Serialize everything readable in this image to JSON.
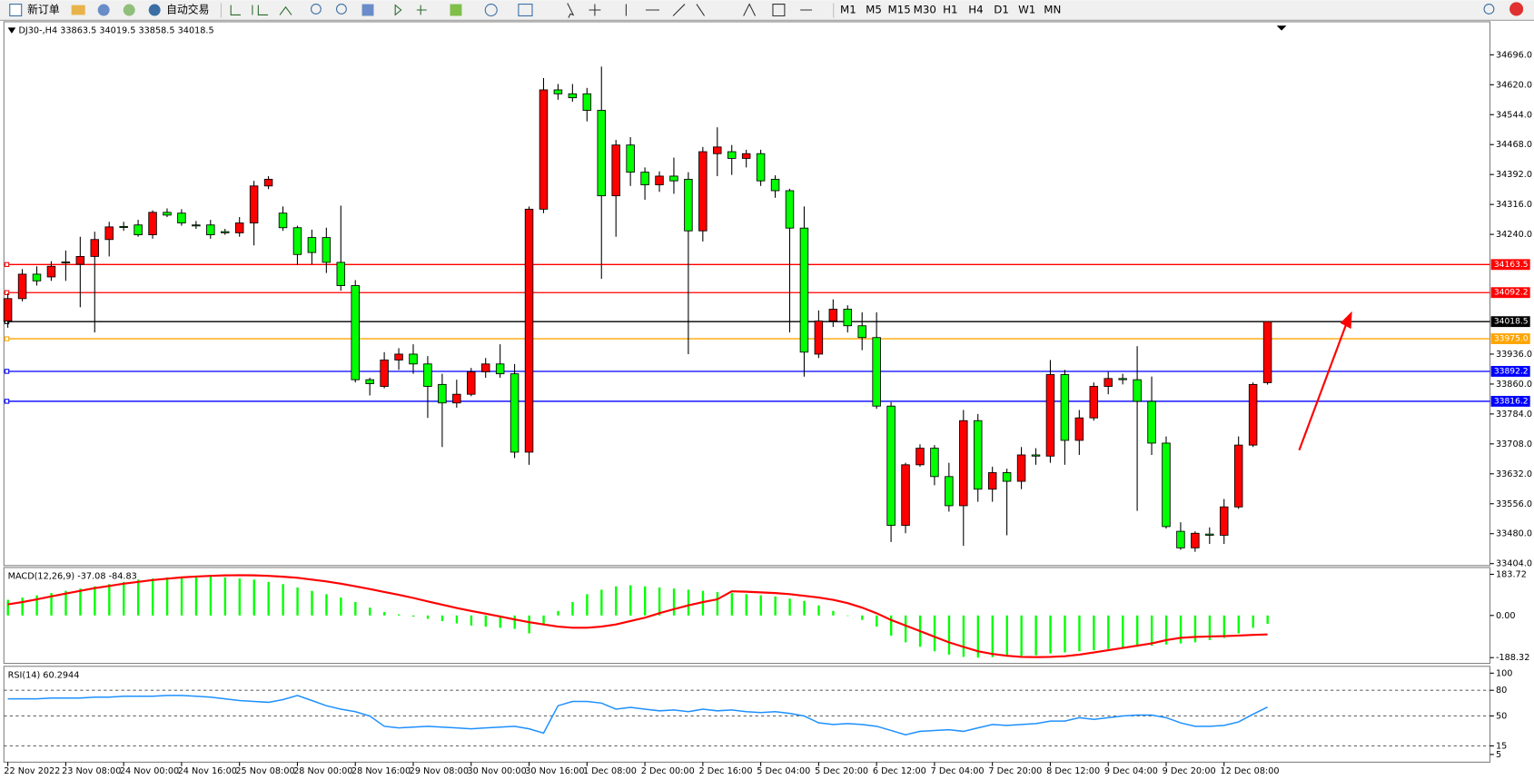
{
  "toolbar": {
    "new_order": "新订单",
    "auto_trading": "自动交易",
    "timeframes": [
      "M1",
      "M5",
      "M15",
      "M30",
      "H1",
      "H4",
      "D1",
      "W1",
      "MN"
    ]
  },
  "chart_data": [
    {
      "type": "candlestick",
      "title": "DJ30-,H4  33863.5 34019.5 33858.5 34018.5",
      "categories": [
        "22 Nov 2022",
        null,
        null,
        null,
        "23 Nov 08:00",
        null,
        null,
        null,
        "24 Nov 00:00",
        null,
        null,
        null,
        "24 Nov 16:00",
        null,
        null,
        null,
        "25 Nov 08:00",
        null,
        null,
        null,
        "28 Nov 00:00",
        null,
        null,
        null,
        "28 Nov 16:00",
        null,
        null,
        null,
        "29 Nov 08:00",
        null,
        null,
        null,
        "30 Nov 00:00",
        null,
        null,
        null,
        "30 Nov 16:00",
        null,
        null,
        null,
        "1 Dec 08:00",
        null,
        null,
        null,
        "2 Dec 00:00",
        null,
        null,
        null,
        "2 Dec 16:00",
        null,
        null,
        null,
        "5 Dec 04:00",
        null,
        null,
        null,
        "5 Dec 20:00",
        null,
        null,
        null,
        "6 Dec 12:00",
        null,
        null,
        null,
        "7 Dec 04:00",
        null,
        null,
        null,
        "7 Dec 20:00",
        null,
        null,
        null,
        "8 Dec 12:00",
        null,
        null,
        null,
        "9 Dec 04:00",
        null,
        null,
        null,
        "9 Dec 20:00",
        null,
        null,
        null,
        "12 Dec 08:00",
        null,
        null,
        null
      ],
      "open": [
        34020,
        34077,
        34139,
        34132,
        34170,
        34164,
        34184,
        34227,
        34260,
        34264,
        34239,
        34296,
        34294,
        34264,
        34264,
        34247,
        34244,
        34269,
        34363,
        34294,
        34257,
        34232,
        34232,
        34169,
        34110,
        33871,
        33854,
        33921,
        33936,
        33911,
        33859,
        33812,
        33834,
        33891,
        33911,
        33886,
        33687,
        34304,
        34607,
        34597,
        34597,
        34555,
        34338,
        34467,
        34398,
        34366,
        34388,
        34380,
        34249,
        34445,
        34450,
        34433,
        34445,
        34380,
        34351,
        34256,
        33936,
        34020,
        34050,
        34008,
        33978,
        33804,
        33501,
        33655,
        33697,
        33625,
        33551,
        33767,
        33593,
        33635,
        33613,
        33680,
        33677,
        33884,
        33717,
        33774,
        33854,
        33874,
        33871,
        33816,
        33710,
        33486,
        33444,
        33479,
        33476,
        33548,
        33705,
        33863.5
      ],
      "high": [
        34090,
        34152,
        34159,
        34172,
        34199,
        34234,
        34247,
        34272,
        34272,
        34277,
        34301,
        34306,
        34304,
        34274,
        34277,
        34254,
        34284,
        34376,
        34388,
        34311,
        34262,
        34252,
        34257,
        34313,
        34124,
        33876,
        33941,
        33951,
        33961,
        33931,
        33886,
        33871,
        33901,
        33926,
        33961,
        33911,
        34311,
        34637,
        34622,
        34622,
        34612,
        34666,
        34480,
        34487,
        34410,
        34400,
        34435,
        34398,
        34462,
        34512,
        34467,
        34455,
        34455,
        34390,
        34356,
        34311,
        34047,
        34075,
        34060,
        34042,
        34042,
        33814,
        33660,
        33707,
        33705,
        33660,
        33794,
        33784,
        33650,
        33645,
        33700,
        33697,
        33921,
        33896,
        33794,
        33864,
        33891,
        33886,
        33956,
        33879,
        33727,
        33509,
        33486,
        33496,
        33568,
        33727,
        33864,
        34019.5
      ],
      "low": [
        34003,
        34070,
        34110,
        34122,
        34122,
        34055,
        33991,
        34184,
        34249,
        34234,
        34229,
        34284,
        34262,
        34254,
        34229,
        34239,
        34234,
        34212,
        34355,
        34249,
        34162,
        34164,
        34142,
        34097,
        33864,
        33831,
        33849,
        33896,
        33886,
        33774,
        33700,
        33800,
        33829,
        33876,
        33876,
        33672,
        33655,
        34294,
        34582,
        34577,
        34527,
        34127,
        34234,
        34363,
        34328,
        34348,
        34343,
        33936,
        34222,
        34388,
        34391,
        34410,
        34363,
        34333,
        33991,
        33879,
        33926,
        34005,
        33991,
        33946,
        33797,
        33459,
        33481,
        33650,
        33603,
        33536,
        33449,
        33561,
        33561,
        33476,
        33593,
        33655,
        33660,
        33655,
        33680,
        33767,
        33834,
        33859,
        33538,
        33680,
        33493,
        33439,
        33434,
        33454,
        33454,
        33543,
        33700,
        33858.5
      ],
      "close": [
        34077,
        34139,
        34122,
        34159,
        34168,
        34184,
        34227,
        34259,
        34258,
        34239,
        34296,
        34289,
        34269,
        34262,
        34239,
        34244,
        34269,
        34363,
        34380,
        34257,
        34189,
        34194,
        34169,
        34110,
        33871,
        33861,
        33921,
        33936,
        33911,
        33854,
        33812,
        33834,
        33891,
        33911,
        33886,
        33687,
        34304,
        34607,
        34597,
        34587,
        34555,
        34338,
        34467,
        34398,
        34366,
        34388,
        34376,
        34249,
        34450,
        34462,
        34433,
        34445,
        34376,
        34351,
        34256,
        33941,
        34020,
        34050,
        34008,
        33978,
        33804,
        33501,
        33655,
        33697,
        33625,
        33551,
        33767,
        33593,
        33635,
        33613,
        33680,
        33677,
        33884,
        33717,
        33774,
        33854,
        33874,
        33871,
        33816,
        33710,
        33498,
        33444,
        33481,
        33476,
        33548,
        33705,
        33859,
        34018.5
      ],
      "up_color": "#ff0000",
      "down_color": "#00ff00",
      "ylim": [
        33399,
        34780
      ],
      "yticks": [
        {
          "value": 34696,
          "label": "34696.0"
        },
        {
          "value": 34620,
          "label": "34620.0"
        },
        {
          "value": 34544,
          "label": "34544.0"
        },
        {
          "value": 34468,
          "label": "34468.0"
        },
        {
          "value": 34392,
          "label": "34392.0"
        },
        {
          "value": 34316,
          "label": "34316.0"
        },
        {
          "value": 34240,
          "label": "34240.0"
        },
        {
          "value": 33936,
          "label": "33936.0"
        },
        {
          "value": 33860,
          "label": "33860.0"
        },
        {
          "value": 33784,
          "label": "33784.0"
        },
        {
          "value": 33708,
          "label": "33708.0"
        },
        {
          "value": 33632,
          "label": "33632.0"
        },
        {
          "value": 33556,
          "label": "33556.0"
        },
        {
          "value": 33480,
          "label": "33480.0"
        },
        {
          "value": 33404,
          "label": "33404.0"
        }
      ],
      "hlines": [
        {
          "value": 34163.5,
          "label": "34163.5",
          "color": "#ff0000"
        },
        {
          "value": 34092.2,
          "label": "34092.2",
          "color": "#ff0000"
        },
        {
          "value": 34018.5,
          "label": "34018.5",
          "color": "#000000"
        },
        {
          "value": 33975,
          "label": "33975.0",
          "color": "#ffa500"
        },
        {
          "value": 33892.2,
          "label": "33892.2",
          "color": "#0000ff"
        },
        {
          "value": 33816.2,
          "label": "33816.2",
          "color": "#0000ff"
        }
      ]
    },
    {
      "type": "macd",
      "title": "MACD(12,26,9) -37.08 -84.83",
      "histogram": {
        "color": "#00ff00",
        "values": [
          70,
          80,
          90,
          100,
          110,
          120,
          130,
          140,
          150,
          160,
          165,
          170,
          172,
          175,
          175,
          170,
          165,
          160,
          150,
          140,
          125,
          110,
          95,
          80,
          60,
          35,
          15,
          5,
          -5,
          -15,
          -25,
          -35,
          -45,
          -50,
          -55,
          -60,
          -80,
          -40,
          20,
          60,
          95,
          115,
          130,
          135,
          130,
          125,
          120,
          115,
          110,
          105,
          100,
          95,
          90,
          85,
          75,
          65,
          45,
          20,
          0,
          -20,
          -50,
          -90,
          -120,
          -140,
          -160,
          -175,
          -185,
          -188,
          -186,
          -182,
          -180,
          -178,
          -170,
          -165,
          -160,
          -155,
          -150,
          -145,
          -140,
          -135,
          -130,
          -125,
          -120,
          -110,
          -100,
          -80,
          -55,
          -37.08
        ]
      },
      "signal": {
        "color": "#ff0000",
        "values": [
          50,
          60,
          72,
          85,
          98,
          110,
          122,
          132,
          142,
          150,
          158,
          164,
          170,
          174,
          177,
          179,
          180,
          179,
          177,
          173,
          168,
          160,
          152,
          142,
          130,
          118,
          105,
          92,
          78,
          63,
          48,
          33,
          20,
          8,
          -5,
          -18,
          -30,
          -40,
          -50,
          -55,
          -55,
          -50,
          -40,
          -25,
          -10,
          10,
          28,
          45,
          60,
          72,
          108,
          106,
          103,
          100,
          95,
          88,
          80,
          70,
          55,
          35,
          10,
          -20,
          -45,
          -70,
          -95,
          -120,
          -140,
          -160,
          -172,
          -180,
          -185,
          -186,
          -185,
          -182,
          -175,
          -165,
          -155,
          -145,
          -135,
          -125,
          -110,
          -100,
          -96,
          -94,
          -92,
          -90,
          -87,
          -84.83
        ]
      },
      "ylim": [
        -214,
        214
      ],
      "yticks": [
        183.72,
        {
          "value": 0,
          "label": "0.00"
        },
        -188.32
      ]
    },
    {
      "type": "line",
      "title": "RSI(14) 60.2944",
      "color": "#1e90ff",
      "values": [
        70,
        70,
        70,
        71,
        71,
        71,
        72,
        72,
        73,
        73,
        73,
        74,
        74,
        73,
        72,
        70,
        68,
        67,
        66,
        69,
        74,
        68,
        62,
        58,
        55,
        50,
        38,
        36,
        37,
        38,
        37,
        36,
        35,
        36,
        37,
        38,
        35,
        30,
        62,
        67,
        67,
        65,
        58,
        60,
        58,
        56,
        57,
        55,
        58,
        56,
        57,
        55,
        54,
        55,
        53,
        50,
        42,
        40,
        41,
        40,
        38,
        33,
        28,
        32,
        33,
        34,
        32,
        36,
        40,
        39,
        40,
        41,
        44,
        44,
        48,
        46,
        48,
        50,
        51,
        51,
        48,
        42,
        38,
        38,
        39,
        43,
        52,
        60.2944
      ],
      "ylim": [
        -4,
        108
      ],
      "yticks": [
        100,
        80,
        50,
        15,
        5
      ],
      "levels": [
        80,
        50,
        15
      ]
    }
  ]
}
